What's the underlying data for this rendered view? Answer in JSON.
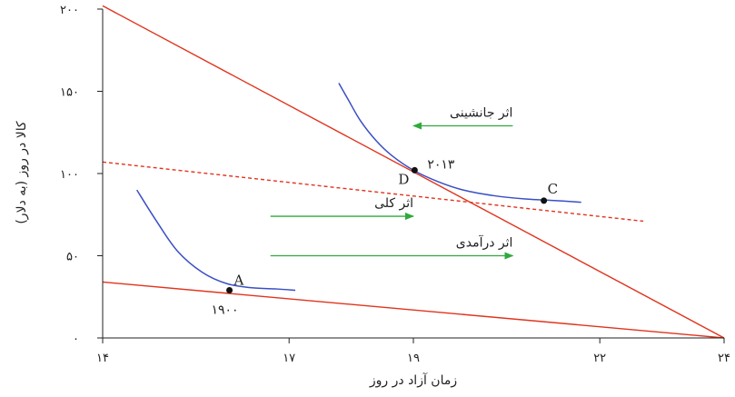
{
  "chart_data": {
    "type": "line",
    "xlabel": "زمان آزاد در روز",
    "ylabel": "کالا در روز (به دلار)",
    "xlim": [
      14,
      24
    ],
    "ylim": [
      0,
      200
    ],
    "x_ticks": [
      {
        "value": 14,
        "label": "۱۴"
      },
      {
        "value": 17,
        "label": "۱۷"
      },
      {
        "value": 19,
        "label": "۱۹"
      },
      {
        "value": 22,
        "label": "۲۲"
      },
      {
        "value": 24,
        "label": "۲۴"
      }
    ],
    "y_ticks": [
      {
        "value": 0,
        "label": "۰"
      },
      {
        "value": 50,
        "label": "۵۰"
      },
      {
        "value": 100,
        "label": "۱۰۰"
      },
      {
        "value": 150,
        "label": "۱۵۰"
      },
      {
        "value": 200,
        "label": "۲۰۰"
      }
    ],
    "colors": {
      "budget": "#e0341d",
      "curve": "#3a4fc4",
      "arrow": "#2eaa3c",
      "point": "#111111",
      "axis": "#222222"
    },
    "budget_lines": [
      {
        "points": [
          [
            14.0,
            202
          ],
          [
            24,
            0
          ]
        ],
        "style": "solid"
      },
      {
        "points": [
          [
            14.0,
            34
          ],
          [
            24,
            0
          ]
        ],
        "style": "solid"
      },
      {
        "points": [
          [
            14.0,
            107
          ],
          [
            22.7,
            71
          ]
        ],
        "style": "dashed"
      }
    ],
    "indifference_curves": [
      {
        "points": [
          [
            14.55,
            90
          ],
          [
            14.85,
            72
          ],
          [
            15.2,
            53
          ],
          [
            15.6,
            40
          ],
          [
            16.0,
            33
          ],
          [
            16.4,
            30.5
          ],
          [
            16.8,
            29.8
          ],
          [
            17.1,
            29.0
          ]
        ]
      },
      {
        "points": [
          [
            17.8,
            155
          ],
          [
            17.95,
            145
          ],
          [
            18.15,
            132
          ],
          [
            18.4,
            120
          ],
          [
            18.65,
            111
          ],
          [
            19.0,
            102
          ],
          [
            19.4,
            95
          ],
          [
            19.8,
            90
          ],
          [
            20.3,
            86.5
          ],
          [
            20.8,
            84.5
          ],
          [
            21.3,
            83.5
          ],
          [
            21.7,
            82.5
          ]
        ]
      }
    ],
    "points": [
      {
        "name": "A",
        "x": 16.04,
        "y": 29,
        "label": "A",
        "sublabel": "۱۹۰۰"
      },
      {
        "name": "D",
        "x": 19.02,
        "y": 102,
        "label": "D",
        "sublabel": "۲۰۱۳"
      },
      {
        "name": "C",
        "x": 21.1,
        "y": 83.5,
        "label": "C",
        "sublabel": ""
      }
    ],
    "effects": [
      {
        "label": "اثر جانشینی",
        "x_from": 20.6,
        "x_to": 19.0,
        "y": 129
      },
      {
        "label": "اثر کلی",
        "x_from": 16.7,
        "x_to": 19.0,
        "y": 74
      },
      {
        "label": "اثر درآمدی",
        "x_from": 16.7,
        "x_to": 20.6,
        "y": 50
      }
    ]
  }
}
